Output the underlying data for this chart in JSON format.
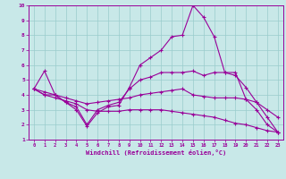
{
  "xlabel": "Windchill (Refroidissement éolien,°C)",
  "xlim": [
    -0.5,
    23.5
  ],
  "ylim": [
    1,
    10
  ],
  "xticks": [
    0,
    1,
    2,
    3,
    4,
    5,
    6,
    7,
    8,
    9,
    10,
    11,
    12,
    13,
    14,
    15,
    16,
    17,
    18,
    19,
    20,
    21,
    22,
    23
  ],
  "yticks": [
    1,
    2,
    3,
    4,
    5,
    6,
    7,
    8,
    9,
    10
  ],
  "bg_color": "#c8e8e8",
  "line_color": "#990099",
  "grid_color": "#99cccc",
  "lines": [
    {
      "x": [
        0,
        1,
        2,
        3,
        4,
        5,
        6,
        7,
        8,
        9,
        10,
        11,
        12,
        13,
        14,
        15,
        16,
        17,
        18,
        19,
        20,
        21,
        22,
        23
      ],
      "y": [
        4.4,
        5.6,
        4.0,
        3.5,
        3.0,
        1.9,
        2.8,
        3.2,
        3.3,
        4.5,
        6.0,
        6.5,
        7.0,
        7.9,
        8.0,
        10.0,
        9.2,
        7.9,
        5.5,
        5.5,
        3.7,
        3.0,
        2.0,
        1.5
      ]
    },
    {
      "x": [
        0,
        1,
        2,
        3,
        4,
        5,
        6,
        7,
        8,
        9,
        10,
        11,
        12,
        13,
        14,
        15,
        16,
        17,
        18,
        19,
        20,
        21,
        22,
        23
      ],
      "y": [
        4.4,
        4.0,
        4.0,
        3.5,
        3.2,
        2.0,
        3.0,
        3.3,
        3.5,
        4.4,
        5.0,
        5.2,
        5.5,
        5.5,
        5.5,
        5.6,
        5.3,
        5.5,
        5.5,
        5.3,
        4.5,
        3.5,
        2.5,
        1.5
      ]
    },
    {
      "x": [
        0,
        1,
        2,
        3,
        4,
        5,
        6,
        7,
        8,
        9,
        10,
        11,
        12,
        13,
        14,
        15,
        16,
        17,
        18,
        19,
        20,
        21,
        22,
        23
      ],
      "y": [
        4.4,
        4.2,
        4.0,
        3.8,
        3.6,
        3.4,
        3.5,
        3.6,
        3.7,
        3.8,
        4.0,
        4.1,
        4.2,
        4.3,
        4.4,
        4.0,
        3.9,
        3.8,
        3.8,
        3.8,
        3.7,
        3.5,
        3.0,
        2.5
      ]
    },
    {
      "x": [
        0,
        1,
        2,
        3,
        4,
        5,
        6,
        7,
        8,
        9,
        10,
        11,
        12,
        13,
        14,
        15,
        16,
        17,
        18,
        19,
        20,
        21,
        22,
        23
      ],
      "y": [
        4.4,
        4.0,
        3.8,
        3.6,
        3.4,
        3.0,
        2.9,
        2.9,
        2.9,
        3.0,
        3.0,
        3.0,
        3.0,
        2.9,
        2.8,
        2.7,
        2.6,
        2.5,
        2.3,
        2.1,
        2.0,
        1.8,
        1.6,
        1.5
      ]
    }
  ]
}
